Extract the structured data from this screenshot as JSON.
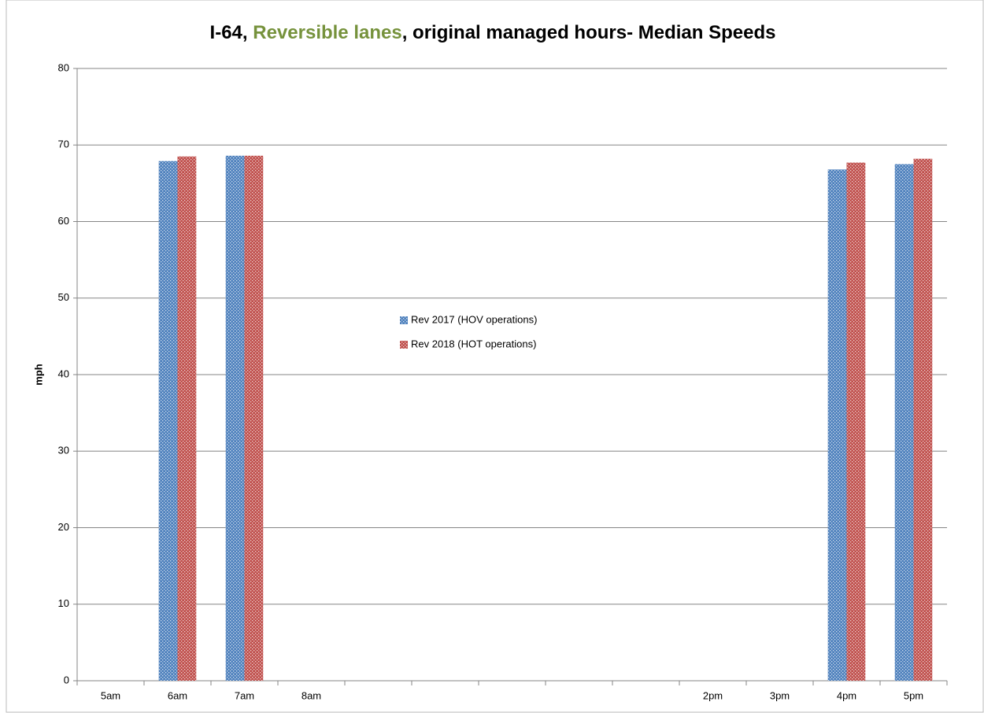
{
  "chart_data": {
    "type": "bar",
    "title": [
      {
        "text": "I-64, ",
        "color": "#000000"
      },
      {
        "text": "Reversible lanes",
        "color": "#76923c"
      },
      {
        "text": ", original managed hours- Median Speeds",
        "color": "#000000"
      }
    ],
    "ylabel": "mph",
    "categories": [
      "5am",
      "6am",
      "7am",
      "8am",
      null,
      null,
      null,
      null,
      null,
      "2pm",
      "3pm",
      "4pm",
      "5pm"
    ],
    "series": [
      {
        "name": "Rev 2017 (HOV operations)",
        "color": "#4f81bd",
        "values": [
          null,
          67.9,
          68.6,
          null,
          null,
          null,
          null,
          null,
          null,
          null,
          null,
          66.8,
          67.5
        ]
      },
      {
        "name": "Rev 2018 (HOT operations)",
        "color": "#c0504d",
        "values": [
          null,
          68.5,
          68.6,
          null,
          null,
          null,
          null,
          null,
          null,
          null,
          null,
          67.7,
          68.2
        ]
      }
    ],
    "ylim": [
      0,
      80
    ],
    "yticks": [
      0,
      10,
      20,
      30,
      40,
      50,
      60,
      70,
      80
    ],
    "grid": true,
    "legend": "center"
  }
}
